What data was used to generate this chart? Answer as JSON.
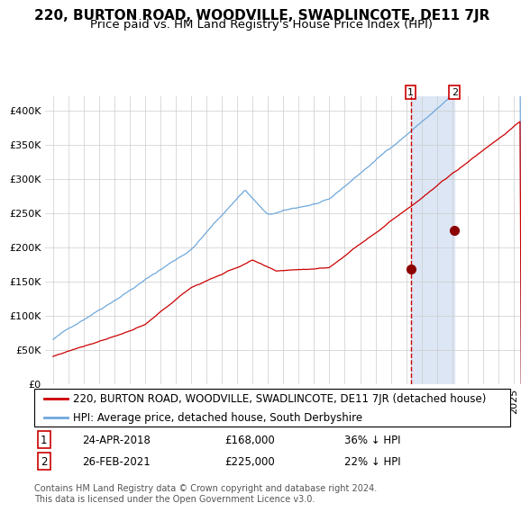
{
  "title": "220, BURTON ROAD, WOODVILLE, SWADLINCOTE, DE11 7JR",
  "subtitle": "Price paid vs. HM Land Registry's House Price Index (HPI)",
  "legend_entry1": "220, BURTON ROAD, WOODVILLE, SWADLINCOTE, DE11 7JR (detached house)",
  "legend_entry2": "HPI: Average price, detached house, South Derbyshire",
  "sale1_date": "24-APR-2018",
  "sale1_price": 168000,
  "sale1_label": "36% ↓ HPI",
  "sale2_date": "26-FEB-2021",
  "sale2_price": 225000,
  "sale2_label": "22% ↓ HPI",
  "footnote": "Contains HM Land Registry data © Crown copyright and database right 2024.\nThis data is licensed under the Open Government Licence v3.0.",
  "hpi_color": "#6fa8dc",
  "price_color": "#cc0000",
  "sale_dot_color": "#8b0000",
  "vline_color": "#cc0000",
  "shade_color": "#dce6f5",
  "grid_color": "#cccccc",
  "bg_color": "#ffffff",
  "ylim": [
    0,
    420000
  ],
  "yticks": [
    0,
    50000,
    100000,
    150000,
    200000,
    250000,
    300000,
    350000,
    400000
  ],
  "x_start_year": 1995,
  "x_end_year": 2025,
  "sale1_year": 2018.3,
  "sale2_year": 2021.15,
  "title_fontsize": 11,
  "subtitle_fontsize": 9.5,
  "tick_fontsize": 8,
  "legend_fontsize": 8.5,
  "annotation_fontsize": 8.5
}
